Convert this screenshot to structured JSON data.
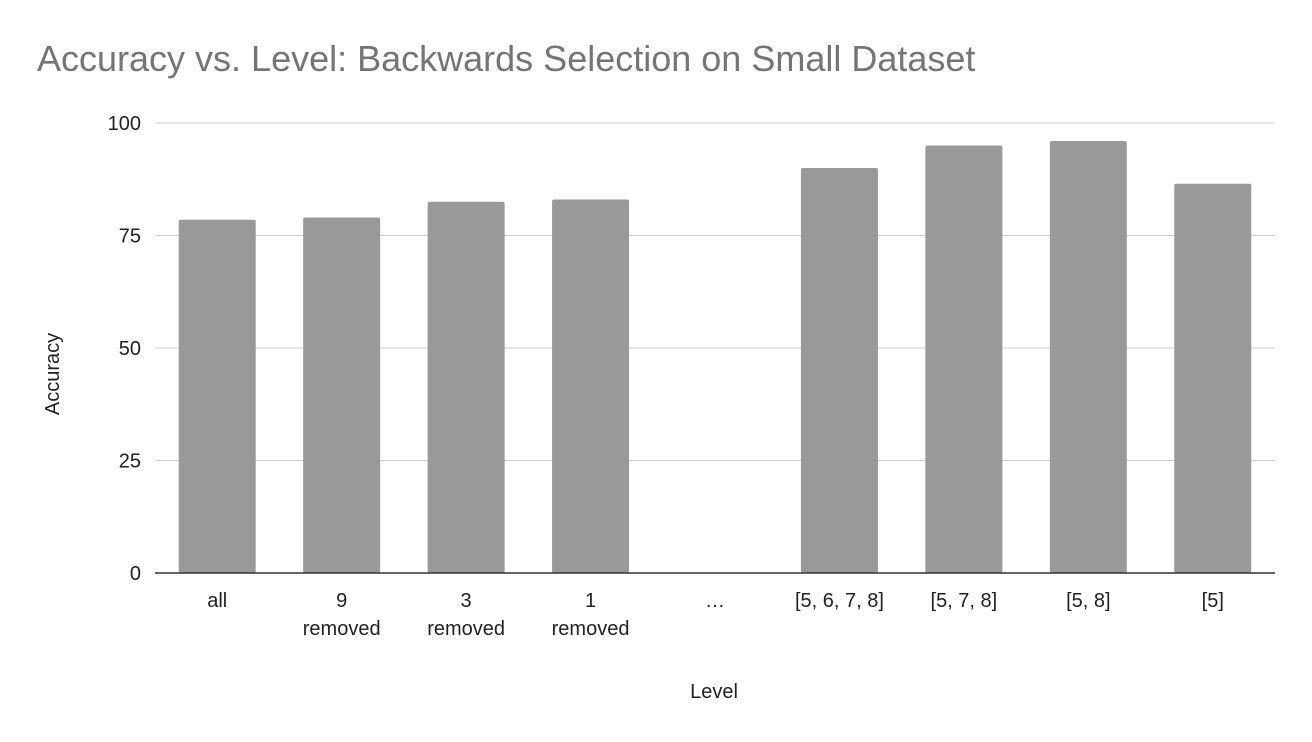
{
  "chart_data": {
    "type": "bar",
    "title": "Accuracy vs. Level: Backwards Selection on Small Dataset",
    "xlabel": "Level",
    "ylabel": "Accuracy",
    "categories": [
      "all",
      "9 removed",
      "3 removed",
      "1 removed",
      "…",
      "[5, 6, 7, 8]",
      "[5, 7, 8]",
      "[5, 8]",
      "[5]"
    ],
    "values": [
      78.5,
      79,
      82.5,
      83,
      null,
      90,
      95,
      96,
      86.5
    ],
    "ylim": [
      0,
      100
    ],
    "yticks": [
      0,
      25,
      50,
      75,
      100
    ],
    "grid": true,
    "legend": "none",
    "colors": {
      "bar": "#999999",
      "grid": "#cccccc",
      "axis": "#333333",
      "title": "#757575",
      "text": "#222222"
    }
  }
}
